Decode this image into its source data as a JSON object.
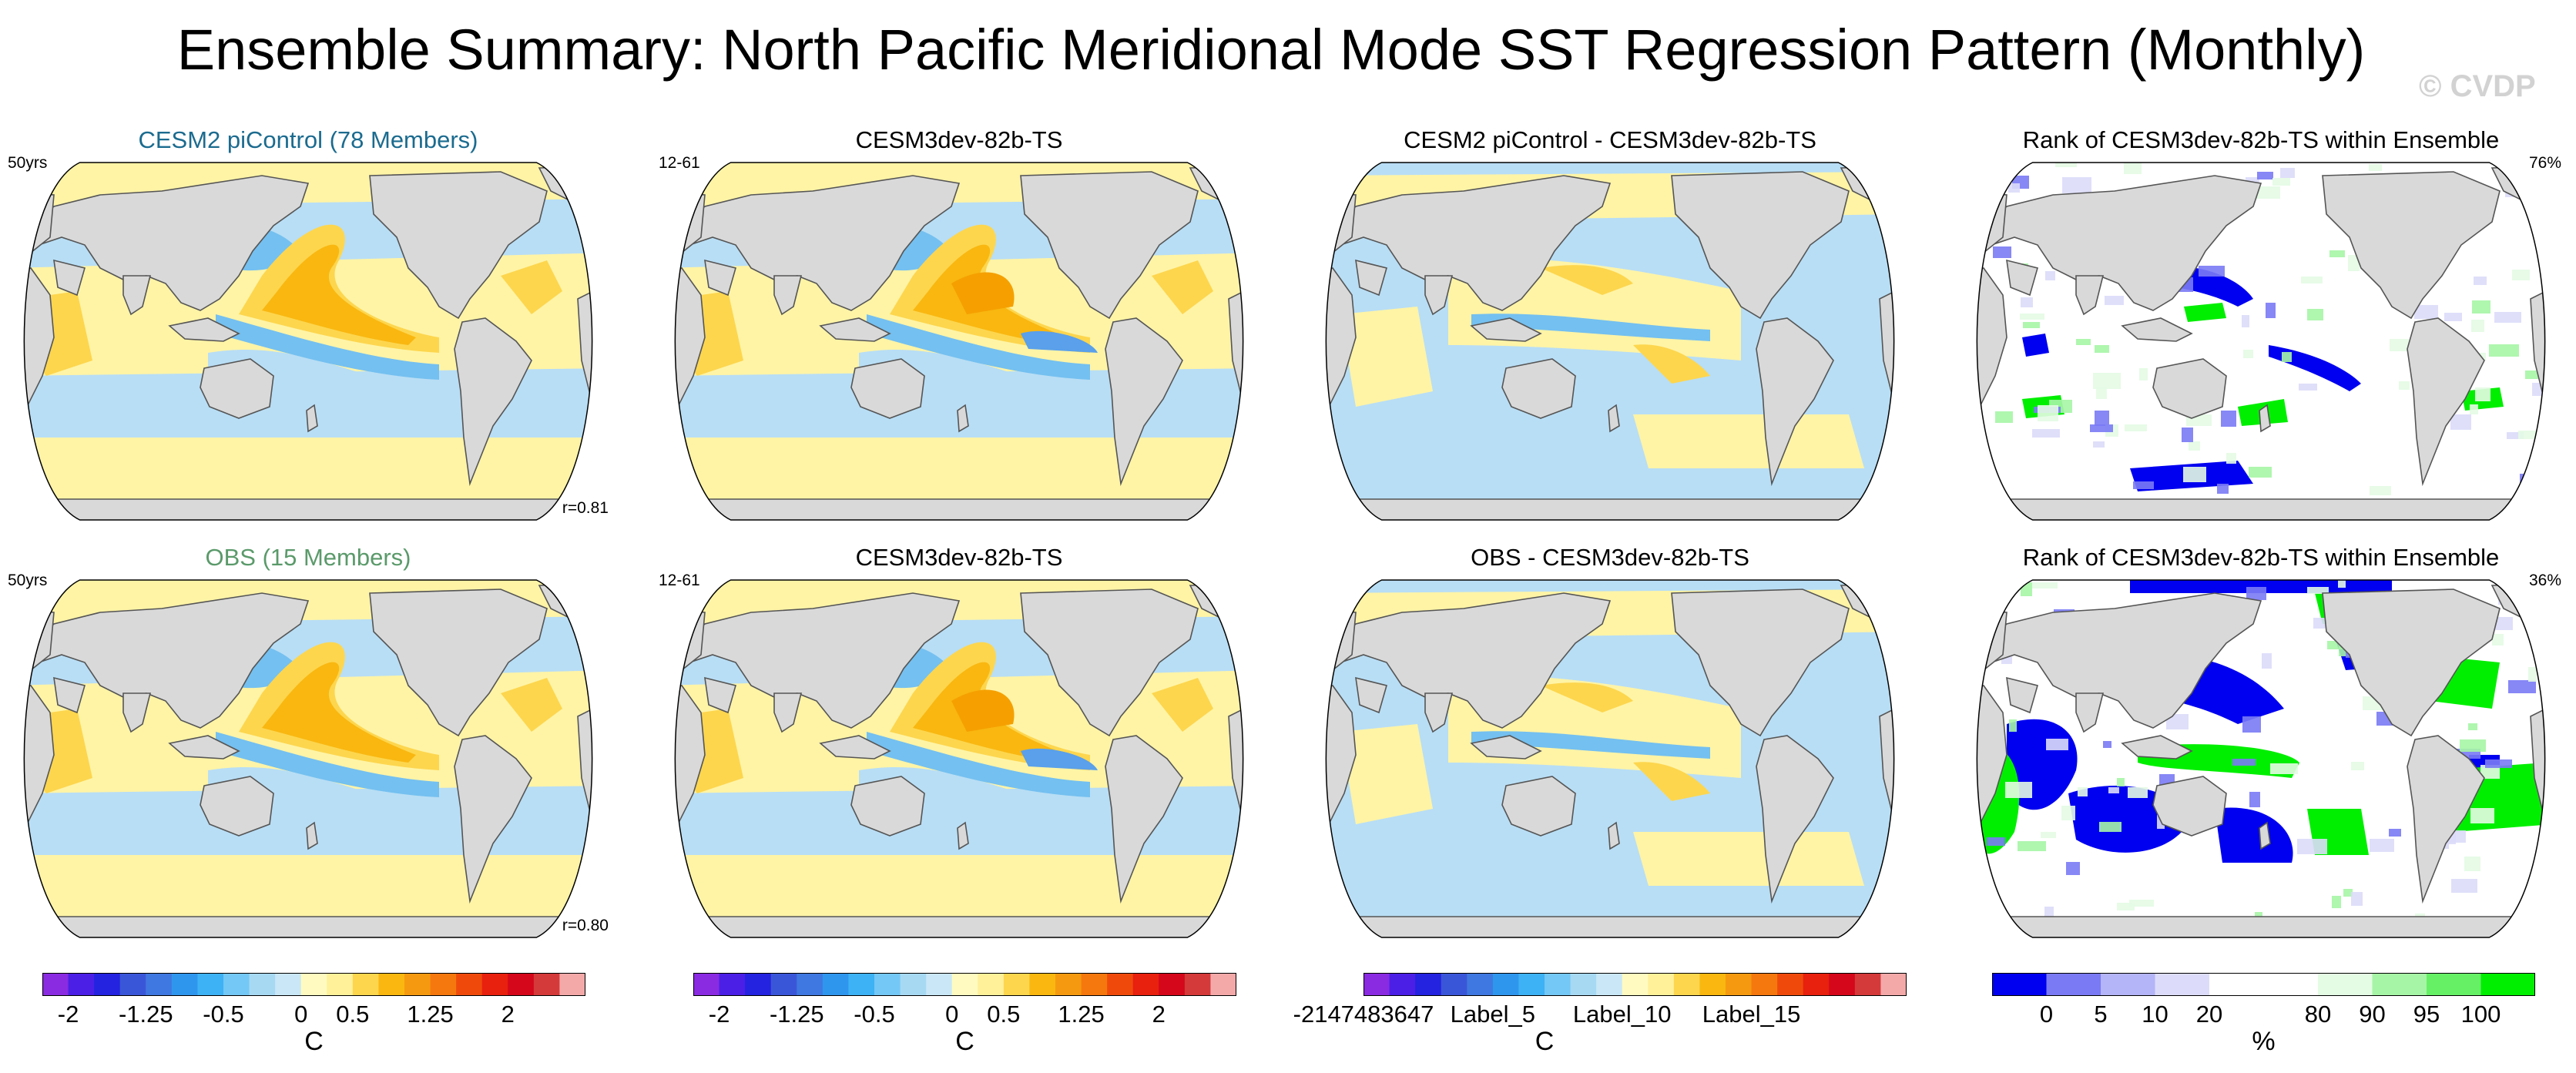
{
  "main_title": "Ensemble Summary: North Pacific Meridional Mode SST Regression Pattern (Monthly)",
  "watermark": "© CVDP",
  "colors": {
    "land": "#d9d9d9",
    "coast": "#555555",
    "title_blue": "#1b6b8f",
    "title_green": "#5a9a6a",
    "neg_strong": "#5aa0ea",
    "neg_mid": "#74c0f0",
    "neg_weak": "#b8def5",
    "pos_weak": "#fff4a6",
    "pos_mid": "#fdd64e",
    "pos_strong": "#f9b710",
    "pos_core": "#f5a000",
    "rank_low": "#0000f0",
    "rank_low2": "#7a7af5",
    "rank_low3": "#dcdcfa",
    "rank_high": "#00ee00",
    "rank_high2": "#a6f5a6",
    "rank_high3": "#e4fbe4"
  },
  "panels": [
    {
      "title": "CESM2 piControl (78 Members)",
      "title_color": "#1b6b8f",
      "left_note": "50yrs",
      "right_note": "",
      "corr": "r=0.81"
    },
    {
      "title": "CESM3dev-82b-TS",
      "title_color": "#000000",
      "left_note": "12-61",
      "right_note": "",
      "corr": ""
    },
    {
      "title": "CESM2 piControl - CESM3dev-82b-TS",
      "title_color": "#000000",
      "left_note": "",
      "right_note": "",
      "corr": ""
    },
    {
      "title": "Rank of CESM3dev-82b-TS within Ensemble",
      "title_color": "#000000",
      "left_note": "",
      "right_note": "76%",
      "corr": ""
    },
    {
      "title": "OBS (15 Members)",
      "title_color": "#5a9a6a",
      "left_note": "50yrs",
      "right_note": "",
      "corr": "r=0.80"
    },
    {
      "title": "CESM3dev-82b-TS",
      "title_color": "#000000",
      "left_note": "12-61",
      "right_note": "",
      "corr": ""
    },
    {
      "title": "OBS - CESM3dev-82b-TS",
      "title_color": "#000000",
      "left_note": "",
      "right_note": "",
      "corr": ""
    },
    {
      "title": "Rank of CESM3dev-82b-TS within Ensemble",
      "title_color": "#000000",
      "left_note": "",
      "right_note": "36%",
      "corr": ""
    }
  ],
  "colorbars": [
    {
      "colors": [
        "#8a2be2",
        "#4b1fe6",
        "#2323e0",
        "#3a56d8",
        "#3f78e0",
        "#2f96ee",
        "#3db2f5",
        "#74c8f5",
        "#a7d9f3",
        "#c9e7f6",
        "#fffbc0",
        "#fff09a",
        "#fdd64e",
        "#f9b710",
        "#f59a10",
        "#f5780e",
        "#ef4a0c",
        "#e8200e",
        "#d4071b",
        "#d43a3a",
        "#f4a9a9"
      ],
      "ticks": [
        "-2",
        "-1.25",
        "-0.5",
        "0",
        "0.5",
        "1.25",
        "2"
      ],
      "tick_positions": [
        1,
        4,
        7,
        10,
        12,
        15,
        18
      ],
      "unit": "C"
    },
    {
      "colors": [
        "#8a2be2",
        "#4b1fe6",
        "#2323e0",
        "#3a56d8",
        "#3f78e0",
        "#2f96ee",
        "#3db2f5",
        "#74c8f5",
        "#a7d9f3",
        "#c9e7f6",
        "#fffbc0",
        "#fff09a",
        "#fdd64e",
        "#f9b710",
        "#f59a10",
        "#f5780e",
        "#ef4a0c",
        "#e8200e",
        "#d4071b",
        "#d43a3a",
        "#f4a9a9"
      ],
      "ticks": [
        "-2",
        "-1.25",
        "-0.5",
        "0",
        "0.5",
        "1.25",
        "2"
      ],
      "tick_positions": [
        1,
        4,
        7,
        10,
        12,
        15,
        18
      ],
      "unit": "C"
    },
    {
      "colors": [
        "#8a2be2",
        "#4b1fe6",
        "#2323e0",
        "#3a56d8",
        "#3f78e0",
        "#2f96ee",
        "#3db2f5",
        "#74c8f5",
        "#a7d9f3",
        "#c9e7f6",
        "#fffbc0",
        "#fff09a",
        "#fdd64e",
        "#f9b710",
        "#f59a10",
        "#f5780e",
        "#ef4a0c",
        "#e8200e",
        "#d4071b",
        "#d43a3a",
        "#f4a9a9"
      ],
      "ticks": [
        "-2147483647",
        "Label_5",
        "Label_10",
        "Label_15"
      ],
      "tick_positions": [
        0,
        5,
        10,
        15
      ],
      "unit": "C"
    },
    {
      "colors": [
        "#0000f0",
        "#7a7af5",
        "#b4b4f8",
        "#dcdcfa",
        "#ffffff",
        "#ffffff",
        "#e4fbe4",
        "#a6f5a6",
        "#66f066",
        "#00ee00"
      ],
      "ticks": [
        "0",
        "5",
        "10",
        "20",
        "80",
        "90",
        "95",
        "100"
      ],
      "tick_positions": [
        1,
        2,
        3,
        4,
        6,
        7,
        8,
        9
      ],
      "unit": "%"
    }
  ]
}
